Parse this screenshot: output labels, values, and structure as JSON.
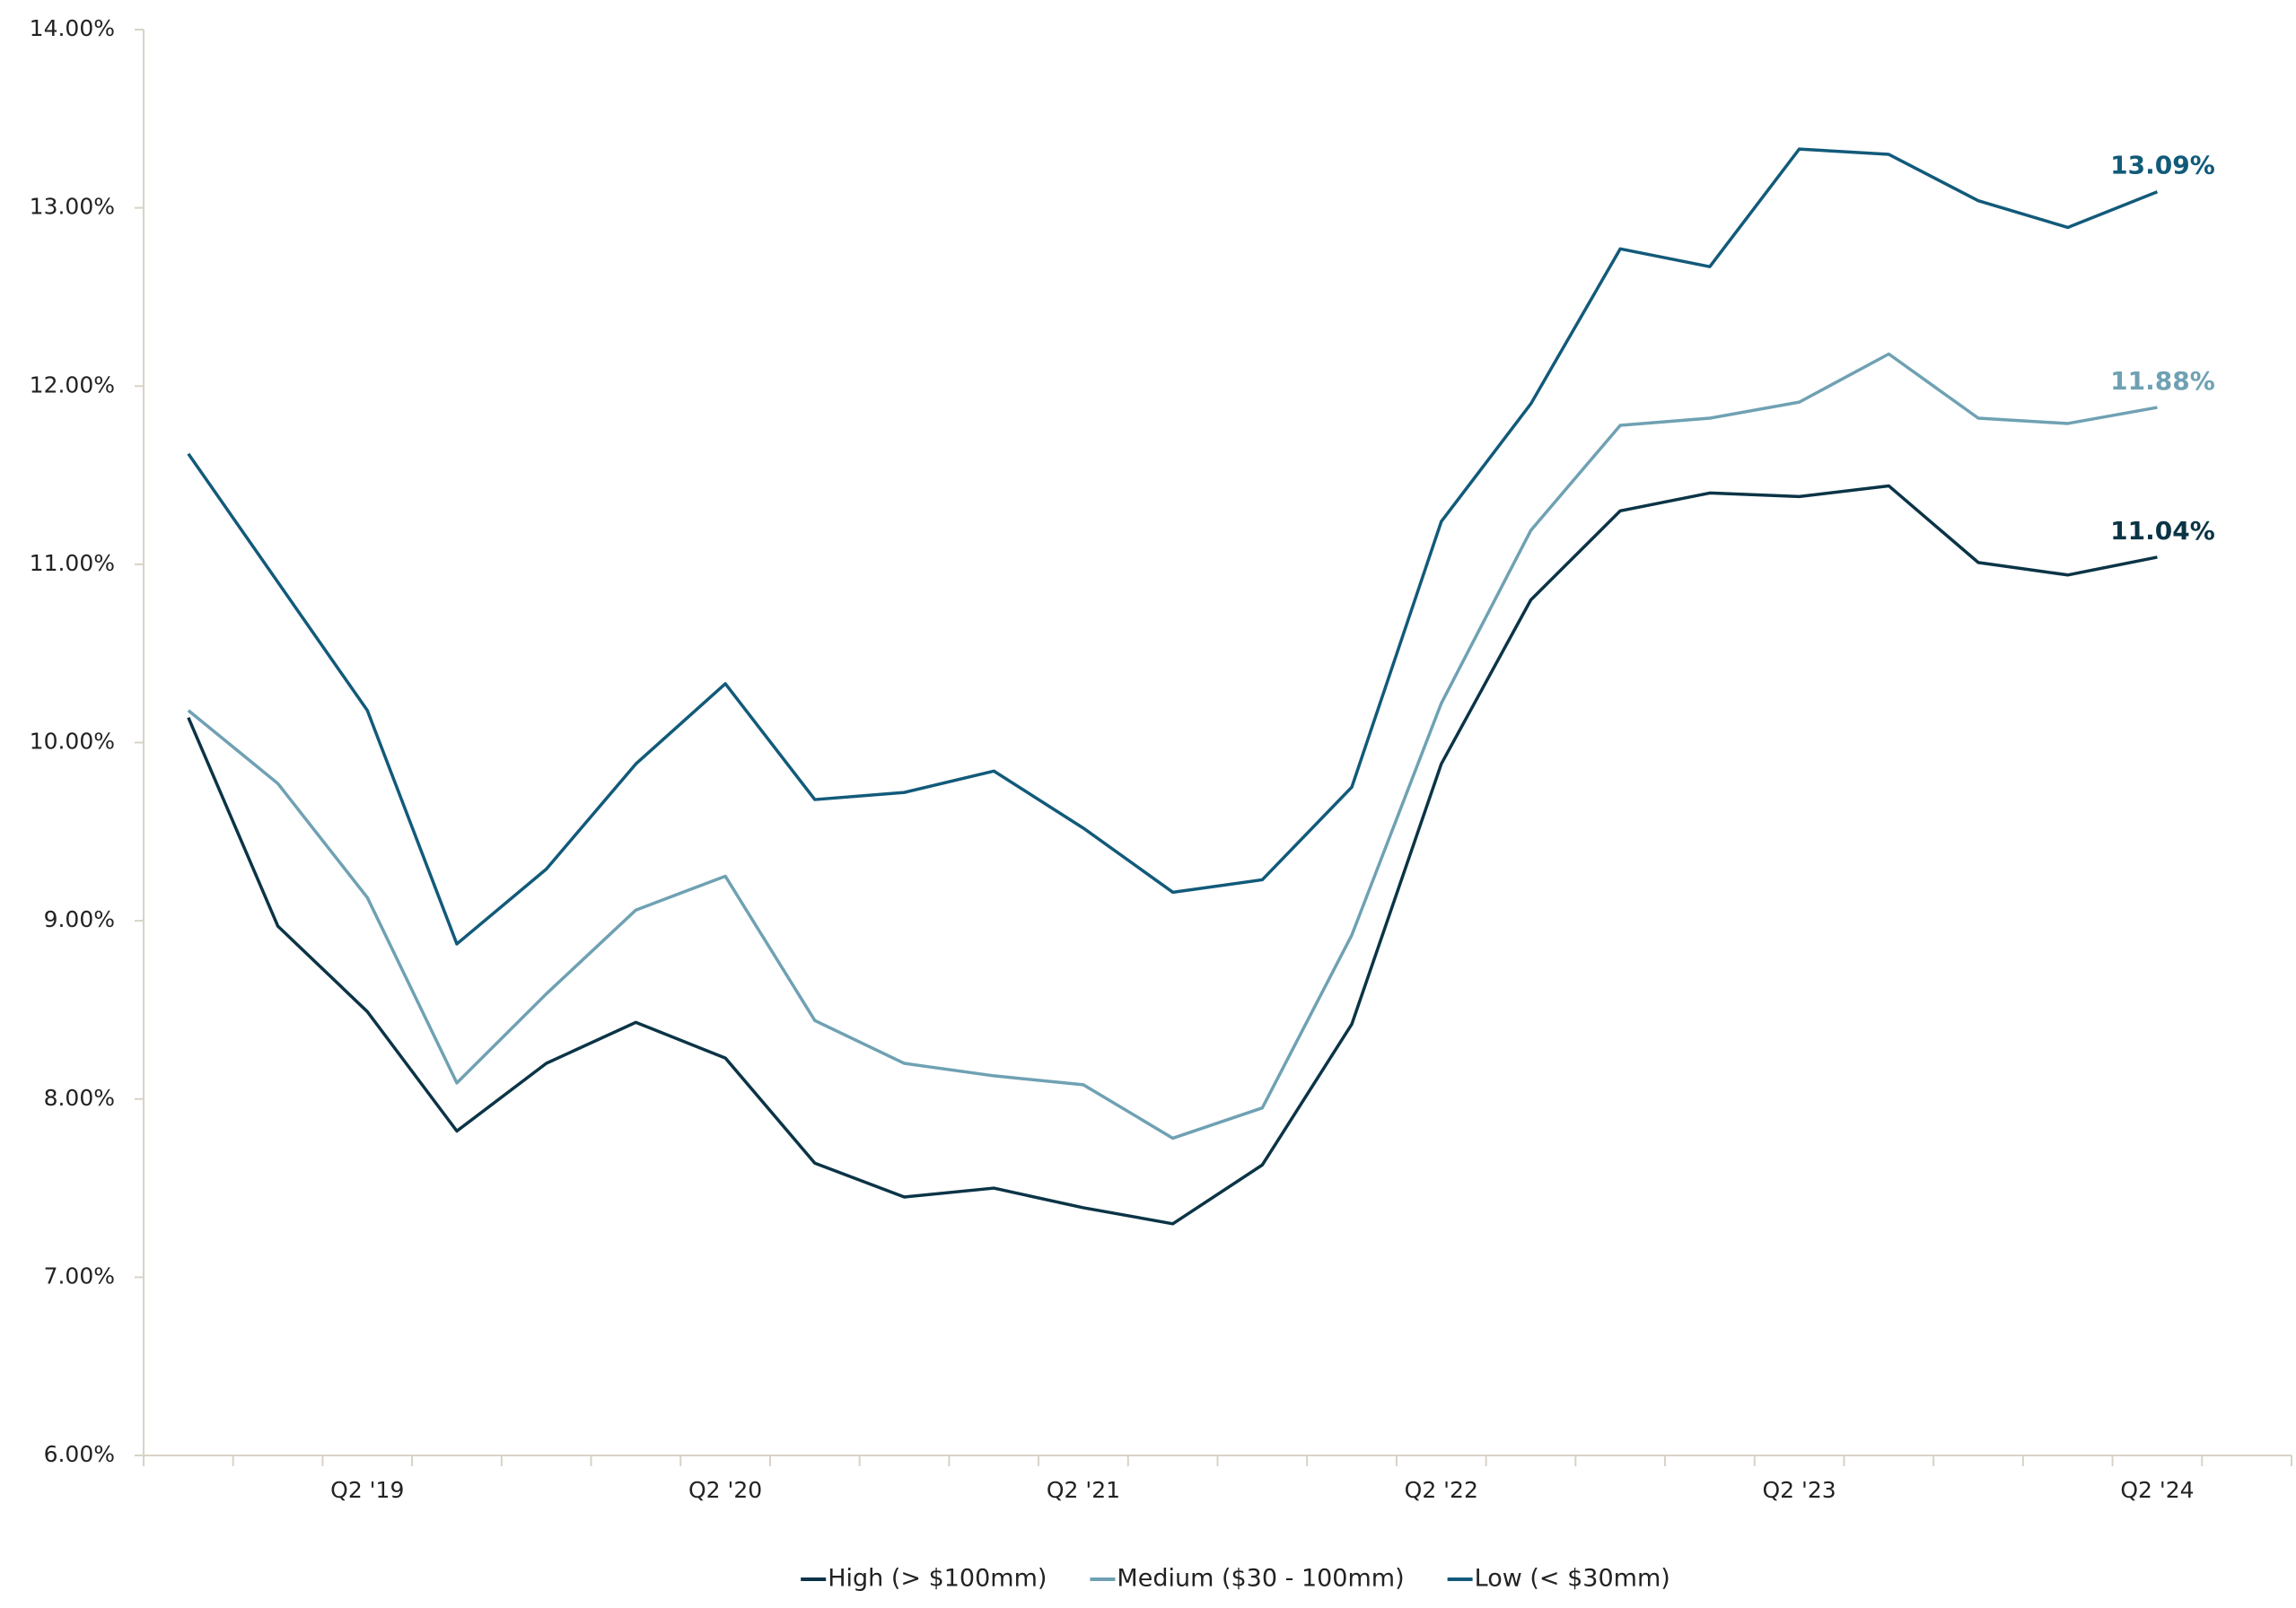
{
  "chart_data": {
    "type": "line",
    "categories": [
      null,
      null,
      "Q2 '19",
      null,
      null,
      null,
      "Q2 '20",
      null,
      null,
      null,
      "Q2 '21",
      null,
      null,
      null,
      "Q2 '22",
      null,
      null,
      null,
      "Q2 '23",
      null,
      null,
      null,
      "Q2 '24",
      null
    ],
    "series": [
      {
        "name": "High (> $100mm)",
        "color": "#0b3446",
        "values": [
          10.14,
          8.97,
          8.49,
          7.82,
          8.2,
          8.43,
          8.23,
          7.64,
          7.45,
          7.5,
          7.39,
          7.3,
          7.63,
          8.42,
          9.88,
          10.8,
          11.3,
          11.4,
          11.38,
          11.44,
          11.01,
          10.94,
          11.04,
          null
        ],
        "value_labels": [
          null,
          null,
          null,
          null,
          null,
          null,
          null,
          null,
          null,
          null,
          null,
          null,
          null,
          null,
          null,
          null,
          null,
          null,
          null,
          null,
          null,
          null,
          "11.04%",
          null
        ]
      },
      {
        "name": "Medium ($30 - 100mm)",
        "color": "#6fa1b3",
        "values": [
          10.18,
          9.77,
          9.13,
          8.09,
          8.59,
          9.06,
          9.25,
          8.44,
          8.2,
          8.13,
          8.08,
          7.78,
          7.95,
          8.92,
          10.22,
          11.19,
          11.78,
          11.82,
          11.91,
          12.18,
          11.82,
          11.79,
          11.88,
          null
        ],
        "value_labels": [
          null,
          null,
          null,
          null,
          null,
          null,
          null,
          null,
          null,
          null,
          null,
          null,
          null,
          null,
          null,
          null,
          null,
          null,
          null,
          null,
          null,
          null,
          "11.88%",
          null
        ]
      },
      {
        "name": "Low (< $30mm)",
        "color": "#125a7a",
        "values": [
          11.62,
          10.9,
          10.18,
          8.87,
          9.29,
          9.88,
          10.33,
          9.68,
          9.72,
          9.84,
          9.52,
          9.16,
          9.23,
          9.75,
          11.24,
          11.9,
          12.77,
          12.67,
          13.33,
          13.3,
          13.04,
          12.89,
          13.09,
          null
        ],
        "value_labels": [
          null,
          null,
          null,
          null,
          null,
          null,
          null,
          null,
          null,
          null,
          null,
          null,
          null,
          null,
          null,
          null,
          null,
          null,
          null,
          null,
          null,
          null,
          "13.09%",
          null
        ]
      }
    ],
    "ylim": [
      6,
      14
    ],
    "yticks": [
      {
        "value": 6,
        "label": "6.00%"
      },
      {
        "value": 7,
        "label": "7.00%"
      },
      {
        "value": 8,
        "label": "8.00%"
      },
      {
        "value": 9,
        "label": "9.00%"
      },
      {
        "value": 10,
        "label": "10.00%"
      },
      {
        "value": 11,
        "label": "11.00%"
      },
      {
        "value": 12,
        "label": "12.00%"
      },
      {
        "value": 13,
        "label": "13.00%"
      },
      {
        "value": 14,
        "label": "14.00%"
      }
    ],
    "grid": false,
    "legend": "bottom"
  }
}
